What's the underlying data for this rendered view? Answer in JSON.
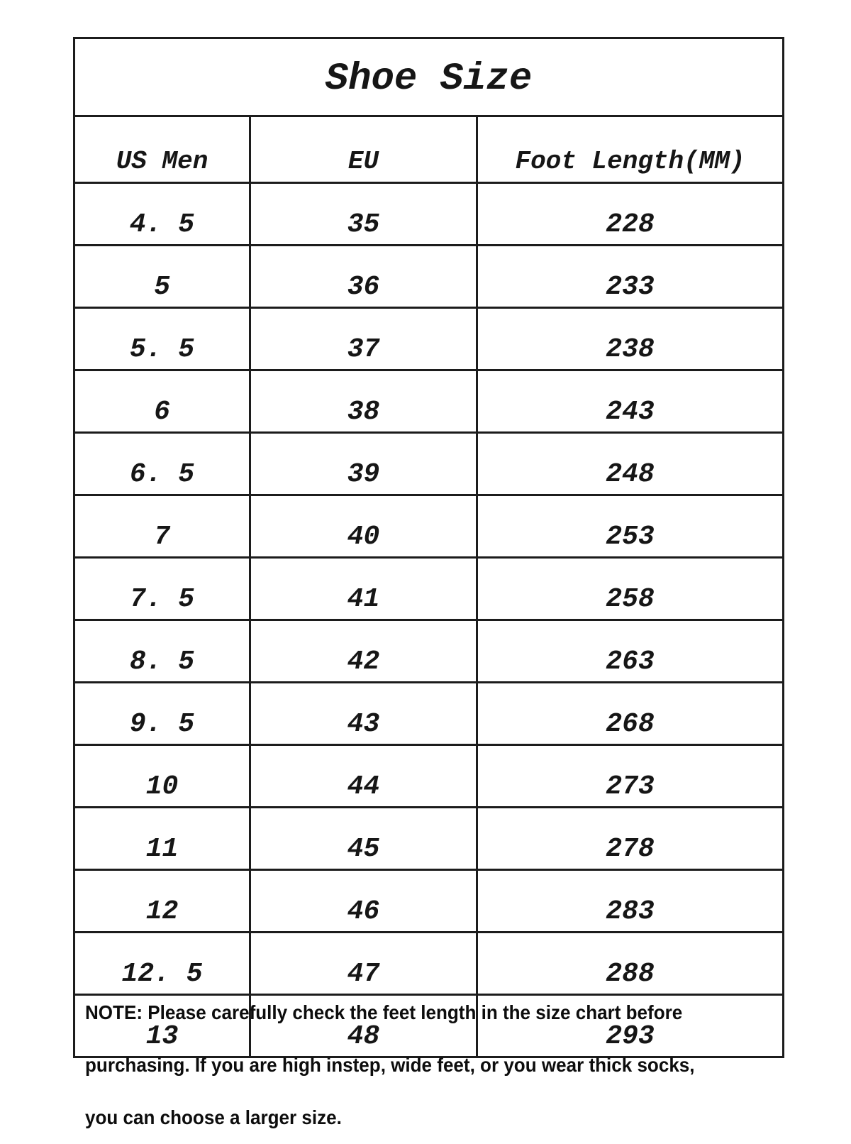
{
  "chart_data": {
    "type": "table",
    "title": "Shoe Size",
    "columns": [
      "US Men",
      "EU",
      "Foot Length(MM)"
    ],
    "rows": [
      [
        "4. 5",
        "35",
        "228"
      ],
      [
        "5",
        "36",
        "233"
      ],
      [
        "5. 5",
        "37",
        "238"
      ],
      [
        "6",
        "38",
        "243"
      ],
      [
        "6. 5",
        "39",
        "248"
      ],
      [
        "7",
        "40",
        "253"
      ],
      [
        "7. 5",
        "41",
        "258"
      ],
      [
        "8. 5",
        "42",
        "263"
      ],
      [
        "9. 5",
        "43",
        "268"
      ],
      [
        "10",
        "44",
        "273"
      ],
      [
        "11",
        "45",
        "278"
      ],
      [
        "12",
        "46",
        "283"
      ],
      [
        "12. 5",
        "47",
        "288"
      ],
      [
        "13",
        "48",
        "293"
      ]
    ],
    "layout": {
      "grid": "on",
      "border_color": "#1c1c1c",
      "background": "#ffffff"
    }
  },
  "note": {
    "lines": [
      "NOTE: Please carefully check the feet length in the size chart before",
      "purchasing. If you are high instep, wide feet, or you wear thick socks,",
      "you can choose a larger size."
    ]
  }
}
